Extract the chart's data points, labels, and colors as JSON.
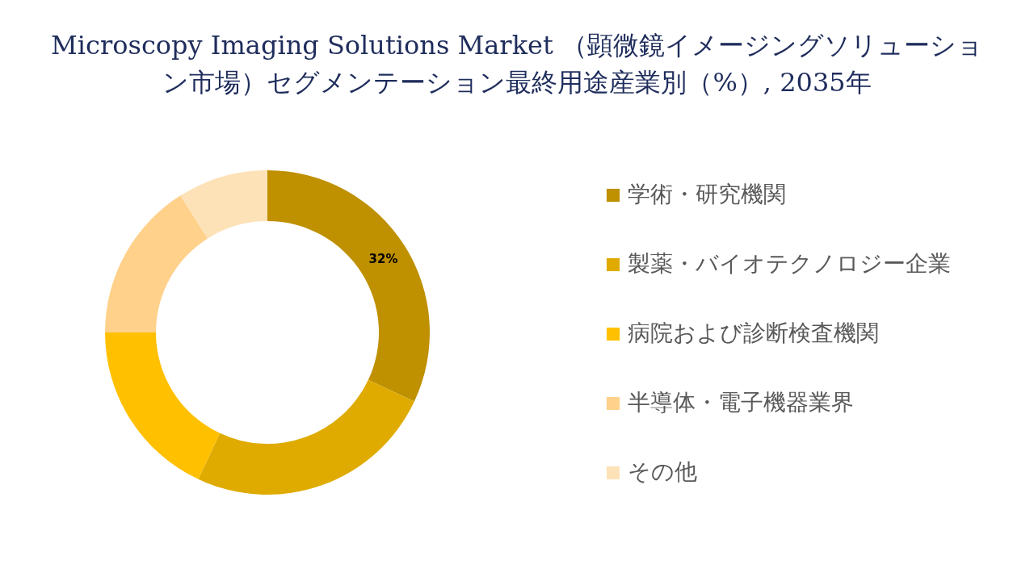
{
  "chart_data": {
    "type": "donut",
    "title": [
      "Microscopy Imaging Solutions Market （顕微鏡イメージングソリューショ",
      "ン市場）セグメンテーション最終用途産業別（%）, 2035年"
    ],
    "categories": [
      "学術・研究機関",
      "製薬・バイオテクノロジー企業",
      "病院および診断検査機関",
      "半導体・電子機器業界",
      "その他"
    ],
    "values": [
      32,
      25,
      18,
      16,
      9
    ],
    "colors": [
      "#bf9000",
      "#dfab00",
      "#ffc000",
      "#ffd18a",
      "#fde2b8"
    ],
    "value_labels": [
      "32%",
      null,
      null,
      null,
      null
    ],
    "legend": "right"
  }
}
